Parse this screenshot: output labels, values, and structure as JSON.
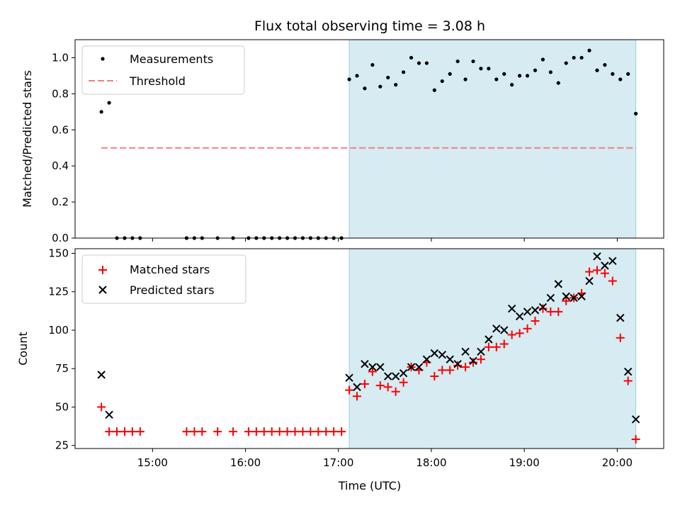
{
  "figure": {
    "title": "Flux total observing time = 3.08 h"
  },
  "colors": {
    "shade": "#add8e6",
    "measurement": "#000000",
    "threshold": "#f08080",
    "matched": "#ff0000",
    "predicted": "#000000"
  },
  "chart_data": [
    {
      "type": "scatter",
      "panel": "top",
      "title": "Flux total observing time = 3.08 h",
      "xlabel": "",
      "ylabel": "Matched/Predicted stars",
      "xlim": [
        "14:10",
        "20:30"
      ],
      "ylim": [
        0,
        1.1
      ],
      "yticks": [
        0.0,
        0.2,
        0.4,
        0.6,
        0.8,
        1.0
      ],
      "ytick_labels": [
        "0.0",
        "0.2",
        "0.4",
        "0.6",
        "0.8",
        "1.0"
      ],
      "shaded_x_range": [
        "17:07",
        "20:12"
      ],
      "legend_position": "upper-left",
      "legend": [
        {
          "label": "Measurements",
          "marker": "dot"
        },
        {
          "label": "Threshold",
          "marker": "dashed-line"
        }
      ],
      "series": [
        {
          "name": "Measurements",
          "x": [
            "14:27",
            "14:32",
            "14:37",
            "14:42",
            "14:47",
            "14:52",
            "15:22",
            "15:27",
            "15:32",
            "15:42",
            "15:52",
            "16:02",
            "16:07",
            "16:12",
            "16:17",
            "16:22",
            "16:27",
            "16:32",
            "16:37",
            "16:42",
            "16:47",
            "16:52",
            "16:57",
            "17:02",
            "17:07",
            "17:12",
            "17:17",
            "17:22",
            "17:27",
            "17:32",
            "17:37",
            "17:42",
            "17:47",
            "17:52",
            "17:57",
            "18:02",
            "18:07",
            "18:12",
            "18:17",
            "18:22",
            "18:27",
            "18:32",
            "18:37",
            "18:42",
            "18:47",
            "18:52",
            "18:57",
            "19:02",
            "19:07",
            "19:12",
            "19:17",
            "19:22",
            "19:27",
            "19:32",
            "19:37",
            "19:42",
            "19:47",
            "19:52",
            "19:57",
            "20:02",
            "20:07",
            "20:12"
          ],
          "y": [
            0.7,
            0.75,
            0.0,
            0.0,
            0.0,
            0.0,
            0.0,
            0.0,
            0.0,
            0.0,
            0.0,
            0.0,
            0.0,
            0.0,
            0.0,
            0.0,
            0.0,
            0.0,
            0.0,
            0.0,
            0.0,
            0.0,
            0.0,
            0.0,
            0.88,
            0.9,
            0.83,
            0.96,
            0.84,
            0.89,
            0.85,
            0.92,
            1.0,
            0.97,
            0.97,
            0.82,
            0.87,
            0.91,
            0.98,
            0.88,
            0.98,
            0.94,
            0.94,
            0.88,
            0.91,
            0.85,
            0.9,
            0.9,
            0.93,
            0.99,
            0.92,
            0.86,
            0.97,
            1.0,
            1.0,
            1.04,
            0.93,
            0.96,
            0.91,
            0.88,
            0.91,
            0.69
          ]
        },
        {
          "name": "Threshold",
          "x": [
            "14:27",
            "20:12"
          ],
          "y": [
            0.5,
            0.5
          ]
        }
      ]
    },
    {
      "type": "scatter",
      "panel": "bottom",
      "xlabel": "Time (UTC)",
      "ylabel": "Count",
      "xlim": [
        "14:10",
        "20:30"
      ],
      "ylim": [
        23,
        153
      ],
      "xticks": [
        "15:00",
        "16:00",
        "17:00",
        "18:00",
        "19:00",
        "20:00"
      ],
      "yticks": [
        25,
        50,
        75,
        100,
        125,
        150
      ],
      "ytick_labels": [
        "25",
        "50",
        "75",
        "100",
        "125",
        "150"
      ],
      "shaded_x_range": [
        "17:07",
        "20:12"
      ],
      "legend_position": "upper-left",
      "legend": [
        {
          "label": "Matched stars",
          "marker": "plus"
        },
        {
          "label": "Predicted stars",
          "marker": "x"
        }
      ],
      "series": [
        {
          "name": "Matched stars",
          "x": [
            "14:27",
            "14:32",
            "14:37",
            "14:42",
            "14:47",
            "14:52",
            "15:22",
            "15:27",
            "15:32",
            "15:42",
            "15:52",
            "16:02",
            "16:07",
            "16:12",
            "16:17",
            "16:22",
            "16:27",
            "16:32",
            "16:37",
            "16:42",
            "16:47",
            "16:52",
            "16:57",
            "17:02",
            "17:07",
            "17:12",
            "17:17",
            "17:22",
            "17:27",
            "17:32",
            "17:37",
            "17:42",
            "17:47",
            "17:52",
            "17:57",
            "18:02",
            "18:07",
            "18:12",
            "18:17",
            "18:22",
            "18:27",
            "18:32",
            "18:37",
            "18:42",
            "18:47",
            "18:52",
            "18:57",
            "19:02",
            "19:07",
            "19:12",
            "19:17",
            "19:22",
            "19:27",
            "19:32",
            "19:37",
            "19:42",
            "19:47",
            "19:52",
            "19:57",
            "20:02",
            "20:07",
            "20:12"
          ],
          "y": [
            50,
            34,
            34,
            34,
            34,
            34,
            34,
            34,
            34,
            34,
            34,
            34,
            34,
            34,
            34,
            34,
            34,
            34,
            34,
            34,
            34,
            34,
            34,
            34,
            61,
            57,
            65,
            73,
            64,
            63,
            60,
            66,
            76,
            74,
            79,
            70,
            74,
            74,
            77,
            76,
            79,
            81,
            89,
            89,
            91,
            97,
            98,
            101,
            106,
            114,
            112,
            112,
            119,
            121,
            124,
            138,
            139,
            137,
            132,
            95,
            67,
            29
          ]
        },
        {
          "name": "Predicted stars",
          "x": [
            "14:27",
            "14:32",
            "17:07",
            "17:12",
            "17:17",
            "17:22",
            "17:27",
            "17:32",
            "17:37",
            "17:42",
            "17:47",
            "17:52",
            "17:57",
            "18:02",
            "18:07",
            "18:12",
            "18:17",
            "18:22",
            "18:27",
            "18:32",
            "18:37",
            "18:42",
            "18:47",
            "18:52",
            "18:57",
            "19:02",
            "19:07",
            "19:12",
            "19:17",
            "19:22",
            "19:27",
            "19:32",
            "19:37",
            "19:42",
            "19:47",
            "19:52",
            "19:57",
            "20:02",
            "20:07",
            "20:12"
          ],
          "y": [
            71,
            45,
            69,
            63,
            78,
            76,
            76,
            70,
            70,
            72,
            76,
            76,
            81,
            85,
            84,
            81,
            78,
            86,
            80,
            86,
            94,
            101,
            100,
            114,
            109,
            112,
            113,
            115,
            121,
            130,
            122,
            121,
            122,
            132,
            148,
            142,
            145,
            108,
            73,
            42
          ]
        }
      ]
    }
  ]
}
